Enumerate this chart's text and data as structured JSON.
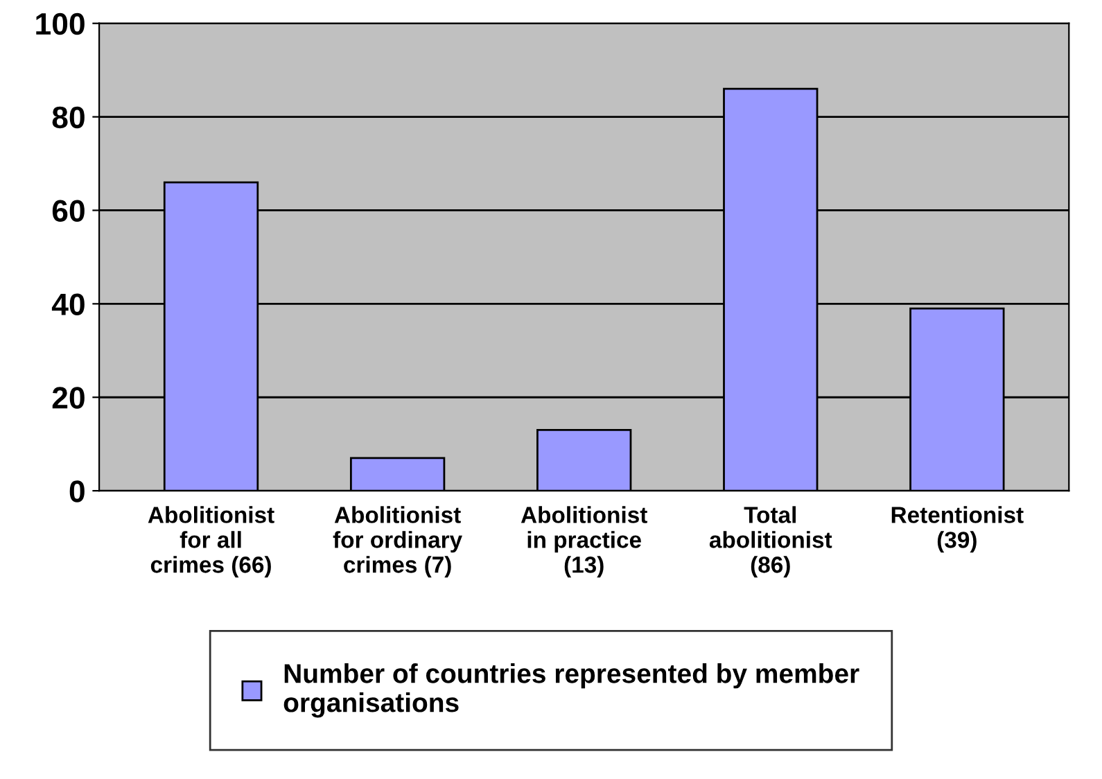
{
  "chart_data": {
    "type": "bar",
    "categories": [
      "Abolitionist\nfor all\ncrimes (66)",
      "Abolitionist\nfor ordinary\ncrimes (7)",
      "Abolitionist\nin practice\n(13)",
      "Total\nabolitionist\n(86)",
      "Retentionist\n(39)"
    ],
    "series": [
      {
        "name": "Number of countries represented by member\norganisations",
        "color": "#9999ff",
        "values": [
          66,
          7,
          13,
          86,
          39
        ]
      }
    ],
    "ylim": [
      0,
      100
    ],
    "yticks": [
      0,
      20,
      40,
      60,
      80,
      100
    ],
    "grid": "y",
    "legend": "bottom"
  }
}
